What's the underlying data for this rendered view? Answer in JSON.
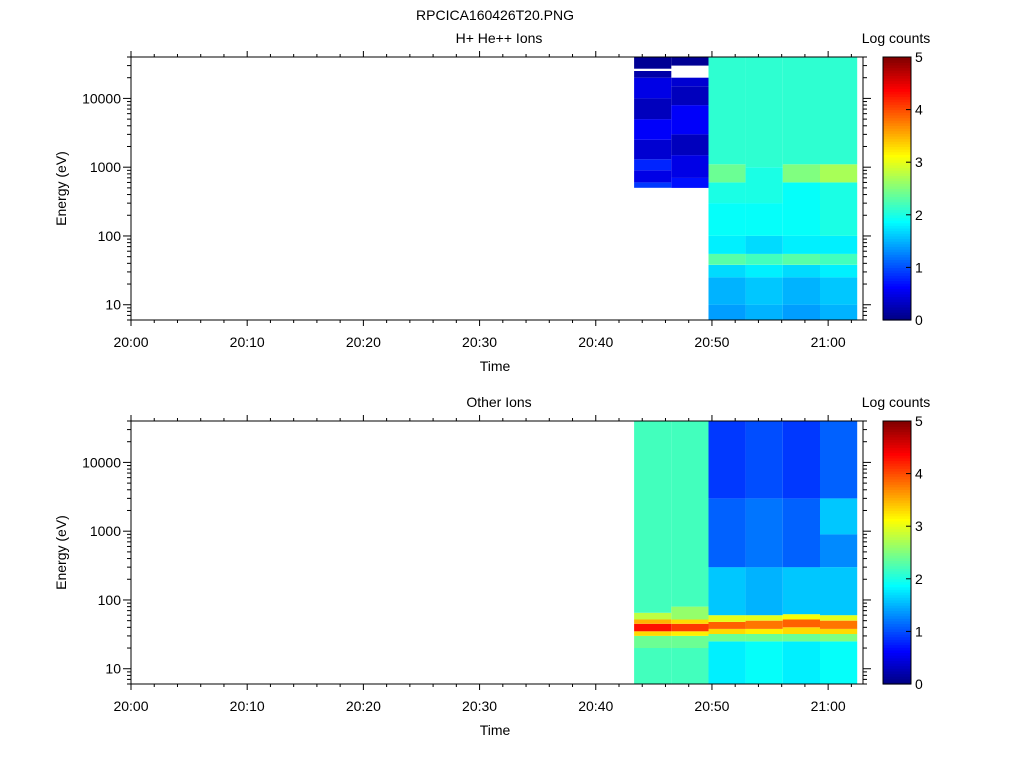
{
  "figure": {
    "title": "RPCICA160426T20.PNG"
  },
  "chart_data": [
    {
      "type": "heatmap",
      "title": "H+ He++ Ions",
      "xlabel": "Time",
      "ylabel": "Energy (eV)",
      "x_tick_labels": [
        "20:00",
        "20:10",
        "20:20",
        "20:30",
        "20:40",
        "20:50",
        "21:00"
      ],
      "x_range_minutes": [
        0,
        63
      ],
      "y_scale": "log",
      "y_range": [
        6,
        40000
      ],
      "y_tick_values": [
        10,
        100,
        1000,
        10000
      ],
      "y_tick_labels": [
        "10",
        "100",
        "1000",
        "10000"
      ],
      "colorbar": {
        "label": "Log counts",
        "range": [
          0,
          5
        ],
        "tick_labels": [
          "0",
          "1",
          "2",
          "3",
          "4",
          "5"
        ]
      },
      "columns": [
        {
          "t0": 43.3,
          "t1": 46.5,
          "bands": [
            {
              "e0": 500,
              "e1": 600,
              "v": 0.9
            },
            {
              "e0": 600,
              "e1": 900,
              "v": 0.5
            },
            {
              "e0": 900,
              "e1": 1300,
              "v": 0.8
            },
            {
              "e0": 1300,
              "e1": 2500,
              "v": 0.4
            },
            {
              "e0": 2500,
              "e1": 5000,
              "v": 0.6
            },
            {
              "e0": 5000,
              "e1": 10000,
              "v": 0.3
            },
            {
              "e0": 10000,
              "e1": 20000,
              "v": 0.5
            },
            {
              "e0": 20000,
              "e1": 25000,
              "v": 0.2
            },
            {
              "e0": 27000,
              "e1": 40000,
              "v": 0.1
            }
          ]
        },
        {
          "t0": 46.5,
          "t1": 49.7,
          "bands": [
            {
              "e0": 500,
              "e1": 700,
              "v": 0.7
            },
            {
              "e0": 700,
              "e1": 1500,
              "v": 0.5
            },
            {
              "e0": 1500,
              "e1": 3000,
              "v": 0.3
            },
            {
              "e0": 3000,
              "e1": 8000,
              "v": 0.6
            },
            {
              "e0": 8000,
              "e1": 15000,
              "v": 0.3
            },
            {
              "e0": 15000,
              "e1": 20000,
              "v": 0.4
            },
            {
              "e0": 30000,
              "e1": 40000,
              "v": 0.1
            }
          ]
        },
        {
          "t0": 49.7,
          "t1": 52.9,
          "bands": [
            {
              "e0": 6,
              "e1": 10,
              "v": 1.4
            },
            {
              "e0": 10,
              "e1": 25,
              "v": 1.5
            },
            {
              "e0": 25,
              "e1": 38,
              "v": 1.7
            },
            {
              "e0": 38,
              "e1": 55,
              "v": 2.3
            },
            {
              "e0": 55,
              "e1": 100,
              "v": 1.8
            },
            {
              "e0": 100,
              "e1": 300,
              "v": 1.9
            },
            {
              "e0": 300,
              "e1": 600,
              "v": 2.0
            },
            {
              "e0": 600,
              "e1": 1100,
              "v": 2.4
            },
            {
              "e0": 1100,
              "e1": 40000,
              "v": 2.1
            }
          ]
        },
        {
          "t0": 52.9,
          "t1": 56.1,
          "bands": [
            {
              "e0": 6,
              "e1": 10,
              "v": 1.5
            },
            {
              "e0": 10,
              "e1": 25,
              "v": 1.6
            },
            {
              "e0": 25,
              "e1": 38,
              "v": 1.8
            },
            {
              "e0": 38,
              "e1": 55,
              "v": 2.2
            },
            {
              "e0": 55,
              "e1": 100,
              "v": 1.7
            },
            {
              "e0": 100,
              "e1": 300,
              "v": 1.9
            },
            {
              "e0": 300,
              "e1": 1000,
              "v": 2.0
            },
            {
              "e0": 1000,
              "e1": 40000,
              "v": 2.1
            }
          ]
        },
        {
          "t0": 56.1,
          "t1": 59.3,
          "bands": [
            {
              "e0": 6,
              "e1": 10,
              "v": 1.4
            },
            {
              "e0": 10,
              "e1": 25,
              "v": 1.5
            },
            {
              "e0": 25,
              "e1": 38,
              "v": 1.7
            },
            {
              "e0": 38,
              "e1": 55,
              "v": 2.3
            },
            {
              "e0": 55,
              "e1": 100,
              "v": 1.8
            },
            {
              "e0": 100,
              "e1": 600,
              "v": 1.9
            },
            {
              "e0": 600,
              "e1": 1100,
              "v": 2.5
            },
            {
              "e0": 1100,
              "e1": 40000,
              "v": 2.1
            }
          ]
        },
        {
          "t0": 59.3,
          "t1": 62.5,
          "bands": [
            {
              "e0": 6,
              "e1": 10,
              "v": 1.5
            },
            {
              "e0": 10,
              "e1": 25,
              "v": 1.6
            },
            {
              "e0": 25,
              "e1": 38,
              "v": 1.8
            },
            {
              "e0": 38,
              "e1": 55,
              "v": 2.2
            },
            {
              "e0": 55,
              "e1": 100,
              "v": 1.8
            },
            {
              "e0": 100,
              "e1": 600,
              "v": 2.0
            },
            {
              "e0": 600,
              "e1": 1100,
              "v": 2.7
            },
            {
              "e0": 1100,
              "e1": 40000,
              "v": 2.1
            }
          ]
        }
      ]
    },
    {
      "type": "heatmap",
      "title": "Other Ions",
      "xlabel": "Time",
      "ylabel": "Energy (eV)",
      "x_tick_labels": [
        "20:00",
        "20:10",
        "20:20",
        "20:30",
        "20:40",
        "20:50",
        "21:00"
      ],
      "x_range_minutes": [
        0,
        63
      ],
      "y_scale": "log",
      "y_range": [
        6,
        40000
      ],
      "y_tick_values": [
        10,
        100,
        1000,
        10000
      ],
      "y_tick_labels": [
        "10",
        "100",
        "1000",
        "10000"
      ],
      "colorbar": {
        "label": "Log counts",
        "range": [
          0,
          5
        ],
        "tick_labels": [
          "0",
          "1",
          "2",
          "3",
          "4",
          "5"
        ]
      },
      "columns": [
        {
          "t0": 43.3,
          "t1": 46.5,
          "bands": [
            {
              "e0": 6,
              "e1": 20,
              "v": 2.2
            },
            {
              "e0": 20,
              "e1": 30,
              "v": 2.4
            },
            {
              "e0": 30,
              "e1": 35,
              "v": 3.3
            },
            {
              "e0": 35,
              "e1": 45,
              "v": 4.3
            },
            {
              "e0": 45,
              "e1": 52,
              "v": 3.5
            },
            {
              "e0": 52,
              "e1": 65,
              "v": 2.8
            },
            {
              "e0": 65,
              "e1": 40000,
              "v": 2.2
            }
          ]
        },
        {
          "t0": 46.5,
          "t1": 49.7,
          "bands": [
            {
              "e0": 6,
              "e1": 20,
              "v": 2.2
            },
            {
              "e0": 20,
              "e1": 30,
              "v": 2.4
            },
            {
              "e0": 30,
              "e1": 35,
              "v": 3.2
            },
            {
              "e0": 35,
              "e1": 45,
              "v": 4.1
            },
            {
              "e0": 45,
              "e1": 52,
              "v": 3.3
            },
            {
              "e0": 52,
              "e1": 80,
              "v": 2.6
            },
            {
              "e0": 80,
              "e1": 40000,
              "v": 2.2
            }
          ]
        },
        {
          "t0": 49.7,
          "t1": 52.9,
          "bands": [
            {
              "e0": 6,
              "e1": 25,
              "v": 1.8
            },
            {
              "e0": 25,
              "e1": 32,
              "v": 2.4
            },
            {
              "e0": 32,
              "e1": 38,
              "v": 3.3
            },
            {
              "e0": 38,
              "e1": 48,
              "v": 3.9
            },
            {
              "e0": 48,
              "e1": 60,
              "v": 3.0
            },
            {
              "e0": 60,
              "e1": 300,
              "v": 1.6
            },
            {
              "e0": 300,
              "e1": 3000,
              "v": 1.1
            },
            {
              "e0": 3000,
              "e1": 40000,
              "v": 0.9
            }
          ]
        },
        {
          "t0": 52.9,
          "t1": 56.1,
          "bands": [
            {
              "e0": 6,
              "e1": 25,
              "v": 1.9
            },
            {
              "e0": 25,
              "e1": 32,
              "v": 2.4
            },
            {
              "e0": 32,
              "e1": 38,
              "v": 3.2
            },
            {
              "e0": 38,
              "e1": 50,
              "v": 3.8
            },
            {
              "e0": 50,
              "e1": 60,
              "v": 3.0
            },
            {
              "e0": 60,
              "e1": 300,
              "v": 1.5
            },
            {
              "e0": 300,
              "e1": 3000,
              "v": 1.2
            },
            {
              "e0": 3000,
              "e1": 40000,
              "v": 1.0
            }
          ]
        },
        {
          "t0": 56.1,
          "t1": 59.3,
          "bands": [
            {
              "e0": 6,
              "e1": 25,
              "v": 1.8
            },
            {
              "e0": 25,
              "e1": 32,
              "v": 2.4
            },
            {
              "e0": 32,
              "e1": 40,
              "v": 3.3
            },
            {
              "e0": 40,
              "e1": 52,
              "v": 3.9
            },
            {
              "e0": 52,
              "e1": 62,
              "v": 3.1
            },
            {
              "e0": 62,
              "e1": 300,
              "v": 1.6
            },
            {
              "e0": 300,
              "e1": 3000,
              "v": 1.1
            },
            {
              "e0": 3000,
              "e1": 40000,
              "v": 0.9
            }
          ]
        },
        {
          "t0": 59.3,
          "t1": 62.5,
          "bands": [
            {
              "e0": 6,
              "e1": 25,
              "v": 1.9
            },
            {
              "e0": 25,
              "e1": 32,
              "v": 2.5
            },
            {
              "e0": 32,
              "e1": 38,
              "v": 3.3
            },
            {
              "e0": 38,
              "e1": 50,
              "v": 3.8
            },
            {
              "e0": 50,
              "e1": 60,
              "v": 3.0
            },
            {
              "e0": 60,
              "e1": 300,
              "v": 1.6
            },
            {
              "e0": 300,
              "e1": 900,
              "v": 1.3
            },
            {
              "e0": 900,
              "e1": 3000,
              "v": 1.6
            },
            {
              "e0": 3000,
              "e1": 40000,
              "v": 1.1
            }
          ]
        }
      ]
    }
  ]
}
